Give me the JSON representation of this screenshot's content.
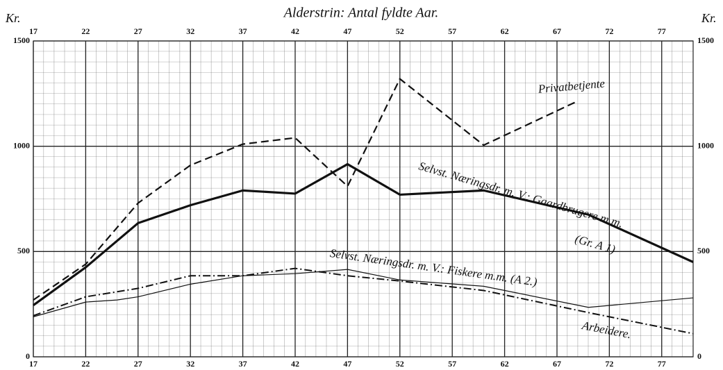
{
  "chart_data": {
    "type": "line",
    "title": "Alderstrin: Antal fyldte Aar.",
    "y_label": "Kr.",
    "y2_label": "Kr.",
    "xlim": [
      17,
      80
    ],
    "ylim": [
      0,
      1500
    ],
    "xticks": [
      17,
      22,
      27,
      32,
      37,
      42,
      47,
      52,
      57,
      62,
      67,
      72,
      77
    ],
    "yticks": [
      0,
      500,
      1000,
      1500
    ],
    "grid": true,
    "series": [
      {
        "name": "Privatbetjente",
        "color": "#111",
        "style": "dashed",
        "x": [
          17,
          22,
          27,
          32,
          37,
          42,
          47,
          52,
          60,
          69
        ],
        "values": [
          270,
          440,
          730,
          910,
          1010,
          1040,
          810,
          1320,
          1005,
          1215
        ]
      },
      {
        "name": "Selvst. Næringsdr. m. V.: Gaardbrugere m.m.",
        "color": "#111",
        "style": "thick",
        "x": [
          17,
          22,
          27,
          32,
          37,
          42,
          47,
          52,
          60,
          70,
          80
        ],
        "values": [
          245,
          425,
          635,
          720,
          790,
          775,
          915,
          770,
          790,
          675,
          450
        ]
      },
      {
        "name": "Selvst. Næringsdr. m. V.: Fiskere m.m. (A 2.)",
        "color": "#111",
        "style": "thin",
        "x": [
          17,
          22,
          25,
          27,
          32,
          37,
          42,
          47,
          52,
          60,
          70,
          80
        ],
        "values": [
          190,
          260,
          270,
          285,
          345,
          385,
          395,
          415,
          365,
          335,
          235,
          280
        ]
      },
      {
        "name": "Arbeidere.",
        "color": "#111",
        "style": "dashdot",
        "x": [
          17,
          22,
          27,
          32,
          37,
          42,
          47,
          52,
          60,
          70,
          80
        ],
        "values": [
          195,
          285,
          325,
          385,
          385,
          420,
          385,
          360,
          315,
          210,
          110
        ]
      }
    ],
    "annotations": [
      "(Gr. A 1)"
    ]
  }
}
